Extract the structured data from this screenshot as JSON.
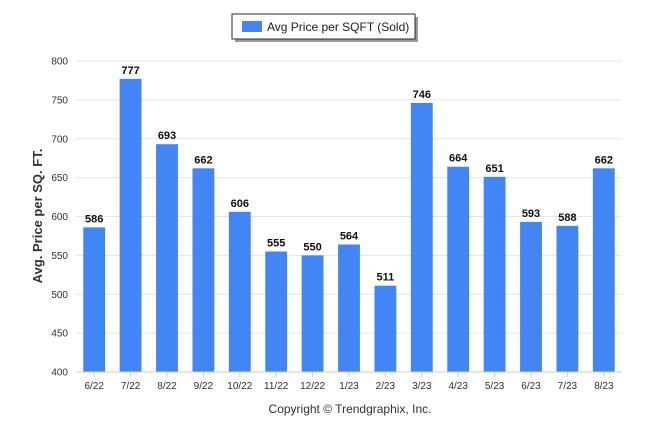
{
  "chart_data": {
    "type": "bar",
    "categories": [
      "6/22",
      "7/22",
      "8/22",
      "9/22",
      "10/22",
      "11/22",
      "12/22",
      "1/23",
      "2/23",
      "3/23",
      "4/23",
      "5/23",
      "6/23",
      "7/23",
      "8/23"
    ],
    "series": [
      {
        "name": "Avg Price per SQFT (Sold)",
        "values": [
          586,
          777,
          693,
          662,
          606,
          555,
          550,
          564,
          511,
          746,
          664,
          651,
          593,
          588,
          662
        ]
      }
    ],
    "title": "",
    "xlabel": "",
    "ylabel": "Avg. Price per SQ. FT.",
    "ylim": [
      400,
      800
    ],
    "yticks": [
      400,
      450,
      500,
      550,
      600,
      650,
      700,
      750,
      800
    ],
    "grid": true,
    "legend": "top-center",
    "data_labels": true,
    "bar_color": "#4285f4"
  },
  "footer": {
    "copyright": "Copyright © Trendgraphix, Inc."
  }
}
